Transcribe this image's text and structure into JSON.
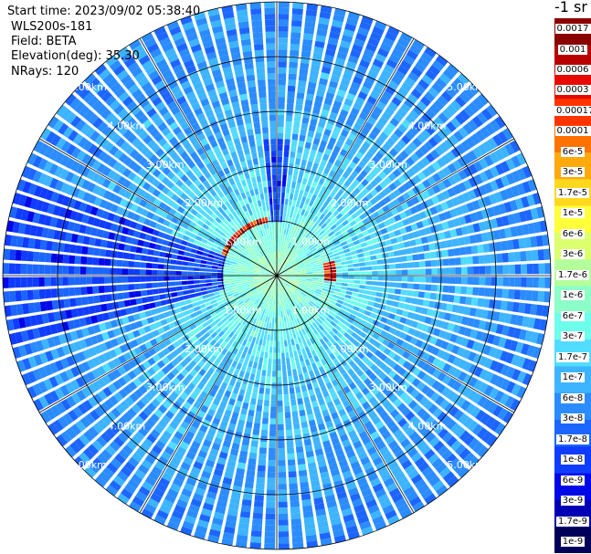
{
  "info": {
    "start_time": "Start time: 2023/09/02 05:38:40",
    "instrument": "WLS200s-181",
    "field": "Field: BETA",
    "elevation": "Elevation(deg): 35.30",
    "nrays": "NRays: 120"
  },
  "colorbar": {
    "unit": "-1 sr",
    "colors": [
      "#00005a",
      "#0000b4",
      "#0008e8",
      "#0f3cff",
      "#1c66ff",
      "#2a8cff",
      "#3db4ff",
      "#52dcff",
      "#6cffec",
      "#8cffc8",
      "#b4ff9c",
      "#dcff6e",
      "#ffff3c",
      "#ffd81e",
      "#ffa90c",
      "#ff7200",
      "#ff3400",
      "#e60a00",
      "#b80000",
      "#8a0000"
    ],
    "labels": [
      "1e-9",
      "1.7e-9",
      "3e-9",
      "6e-9",
      "1e-8",
      "1.7e-8",
      "3e-8",
      "6e-8",
      "1e-7",
      "1.7e-7",
      "3e-7",
      "6e-7",
      "1e-6",
      "1.7e-6",
      "3e-6",
      "6e-6",
      "1e-5",
      "1.7e-5",
      "3e-5",
      "6e-5",
      "0.0001",
      "0.00017",
      "0.0003",
      "0.0006",
      "0.001",
      "0.0017"
    ]
  },
  "chart_data": {
    "type": "heatmap",
    "projection": "polar",
    "field": "BETA",
    "nrays": 120,
    "elevation_deg": 35.3,
    "range_rings_km": [
      1.0,
      2.0,
      3.0,
      4.0,
      5.0
    ],
    "max_range_km": 5.0,
    "spoke_step_deg": 30,
    "ring_labels": [
      "1.00km",
      "2.00km",
      "3.00km",
      "4.00km",
      "5.00km"
    ],
    "value_range": [
      1e-09,
      0.0017
    ],
    "grid": true,
    "features": [
      {
        "description": "strong return arc",
        "azimuth_deg": [
          280,
          350
        ],
        "range_km": 1.05,
        "level": "1e-4 to 1.7e-3"
      },
      {
        "description": "strong return arc",
        "azimuth_deg": [
          75,
          95
        ],
        "range_km": 0.95,
        "level": "1e-4 to 1.7e-3"
      },
      {
        "description": "low return sector",
        "azimuth_deg": [
          255,
          290
        ],
        "range_km": [
          1.0,
          5.0
        ],
        "level": "1e-9 to 1e-8"
      },
      {
        "description": "low return sector",
        "azimuth_deg": [
          355,
          5
        ],
        "range_km": [
          1.0,
          2.5
        ],
        "level": "1e-9 to 1e-8"
      }
    ]
  }
}
